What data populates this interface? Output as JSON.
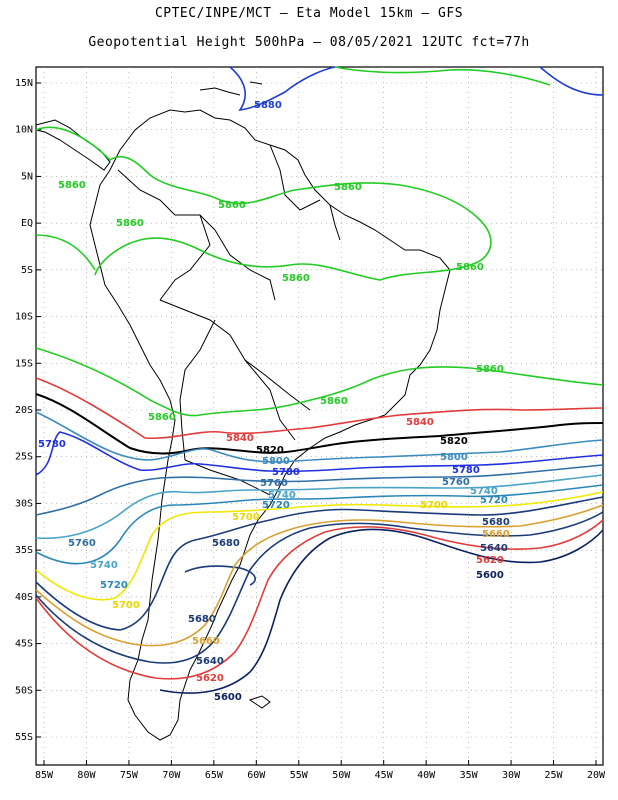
{
  "header": {
    "title_line1": "CPTEC/INPE/MCT –  Eta Model 15km – GFS",
    "title_line2": "Geopotential Height 500hPa – 08/05/2021 12UTC fct=77h"
  },
  "axes": {
    "lon_labels": [
      "85W",
      "80W",
      "75W",
      "70W",
      "65W",
      "60W",
      "55W",
      "50W",
      "45W",
      "40W",
      "35W",
      "30W",
      "25W",
      "20W"
    ],
    "lat_labels": [
      "15N",
      "10N",
      "5N",
      "EQ",
      "5S",
      "10S",
      "15S",
      "20S",
      "25S",
      "30S",
      "35S",
      "40S",
      "45S",
      "50S",
      "55S"
    ],
    "grid": true
  },
  "colors": {
    "c5880": "#1f3fd0",
    "c5860": "#22cc22",
    "c5840": "#e23b3b",
    "c5820": "#000000",
    "c5800": "#3b8bbf",
    "c5780": "#2030e0",
    "c5760": "#2f6fa8",
    "c5740": "#4aa3c8",
    "c5720": "#2b87b8",
    "c5700": "#f0e800",
    "c5680": "#1b3a78",
    "c5660": "#d9a030",
    "c5640": "#1b3a78",
    "c5620": "#e23b3b",
    "c5600": "#0d2060"
  },
  "contours": {
    "l5880": "5880",
    "l5860": "5860",
    "l5840": "5840",
    "l5820": "5820",
    "l5800": "5800",
    "l5780": "5780",
    "l5760": "5760",
    "l5740": "5740",
    "l5720": "5720",
    "l5700": "5700",
    "l5680": "5680",
    "l5660": "5660",
    "l5640": "5640",
    "l5620": "5620",
    "l5600": "5600"
  }
}
